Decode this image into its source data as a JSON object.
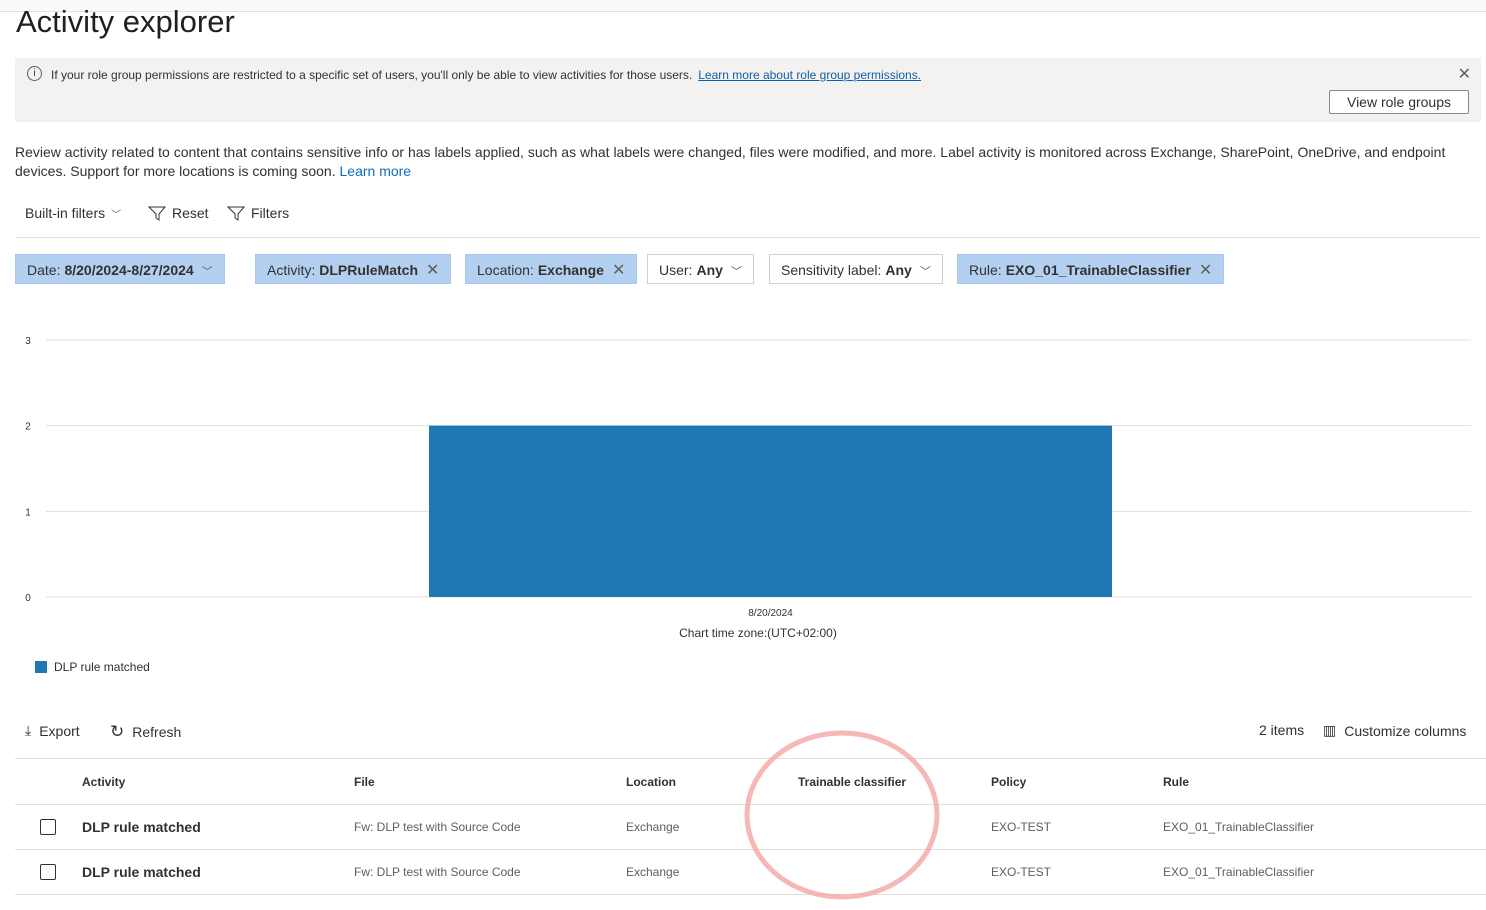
{
  "title": "Activity explorer",
  "banner": {
    "message": "If your role group permissions are restricted to a specific set of users, you'll only be able to view activities for those users.",
    "link": "Learn more about role group permissions.",
    "button": "View role groups"
  },
  "description": {
    "text": "Review activity related to content that contains sensitive info or has labels applied, such as what labels were changed, files were modified, and more. Label activity is monitored across Exchange, SharePoint, OneDrive, and endpoint devices. Support for more locations is coming soon.",
    "link": "Learn more"
  },
  "commands": {
    "builtin": "Built-in filters",
    "reset": "Reset",
    "filters": "Filters"
  },
  "filters": [
    {
      "label": "Date:",
      "value": "8/20/2024-8/27/2024",
      "active": true,
      "control": "chevron"
    },
    {
      "label": "Activity:",
      "value": "DLPRuleMatch",
      "active": true,
      "control": "close"
    },
    {
      "label": "Location:",
      "value": "Exchange",
      "active": true,
      "control": "close"
    },
    {
      "label": "User:",
      "value": "Any",
      "active": false,
      "control": "chevron"
    },
    {
      "label": "Sensitivity label:",
      "value": "Any",
      "active": false,
      "control": "chevron"
    },
    {
      "label": "Rule:",
      "value": "EXO_01_TrainableClassifier",
      "active": true,
      "control": "close"
    }
  ],
  "chart_data": {
    "type": "bar",
    "categories": [
      "8/20/2024"
    ],
    "series": [
      {
        "name": "DLP rule matched",
        "values": [
          2
        ],
        "color": "#1f77b4"
      }
    ],
    "ylim": [
      0,
      3
    ],
    "yticks": [
      "0",
      "1",
      "2",
      "3"
    ],
    "grid": true,
    "legend": "bottom-left",
    "xlabel": "Chart time zone:(UTC+02:00)"
  },
  "toolbar": {
    "export": "Export",
    "refresh": "Refresh",
    "count": "2 items",
    "customize": "Customize columns"
  },
  "table": {
    "columns": [
      "Activity",
      "File",
      "Location",
      "Trainable classifier",
      "Policy",
      "Rule"
    ],
    "rows": [
      [
        "DLP rule matched",
        "Fw: DLP test with Source Code",
        "Exchange",
        "",
        "EXO-TEST",
        "EXO_01_TrainableClassifier"
      ],
      [
        "DLP rule matched",
        "Fw: DLP test with Source Code",
        "Exchange",
        "",
        "EXO-TEST",
        "EXO_01_TrainableClassifier"
      ]
    ]
  }
}
